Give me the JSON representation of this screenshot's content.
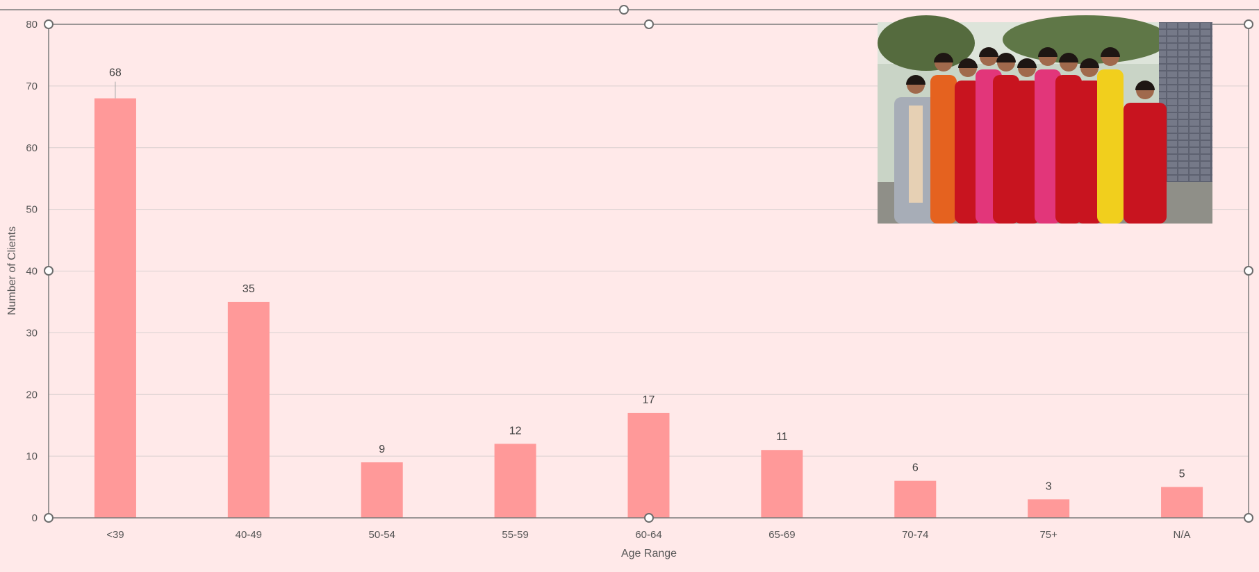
{
  "chart_data": {
    "type": "bar",
    "title": "",
    "xlabel": "Age Range",
    "ylabel": "Number of Clients",
    "categories": [
      "<39",
      "40-49",
      "50-54",
      "55-59",
      "60-64",
      "65-69",
      "70-74",
      "75+",
      "N/A"
    ],
    "values": [
      68,
      35,
      9,
      12,
      17,
      11,
      6,
      3,
      5
    ],
    "ylim": [
      0,
      80
    ],
    "yticks": [
      "0",
      "10",
      "20",
      "30",
      "40",
      "50",
      "60",
      "70",
      "80"
    ],
    "grid": true,
    "legend": "none",
    "bar_color": "#ff9999"
  },
  "photo": {
    "icon": "group-photo-icon",
    "colors": {
      "sky": "#c9d4c6",
      "wall": "#6b6e79",
      "ground": "#8f8f88",
      "red": "#c8141f",
      "pink": "#e2367a",
      "yellow": "#f1cf1d",
      "orange": "#e5621f",
      "grey_coat": "#a7adb7",
      "cream": "#e6d0b4",
      "skin": "#a0694c",
      "hair": "#1e1613"
    }
  },
  "selection": {
    "state": "selected",
    "handle_color": "#ffffff"
  }
}
